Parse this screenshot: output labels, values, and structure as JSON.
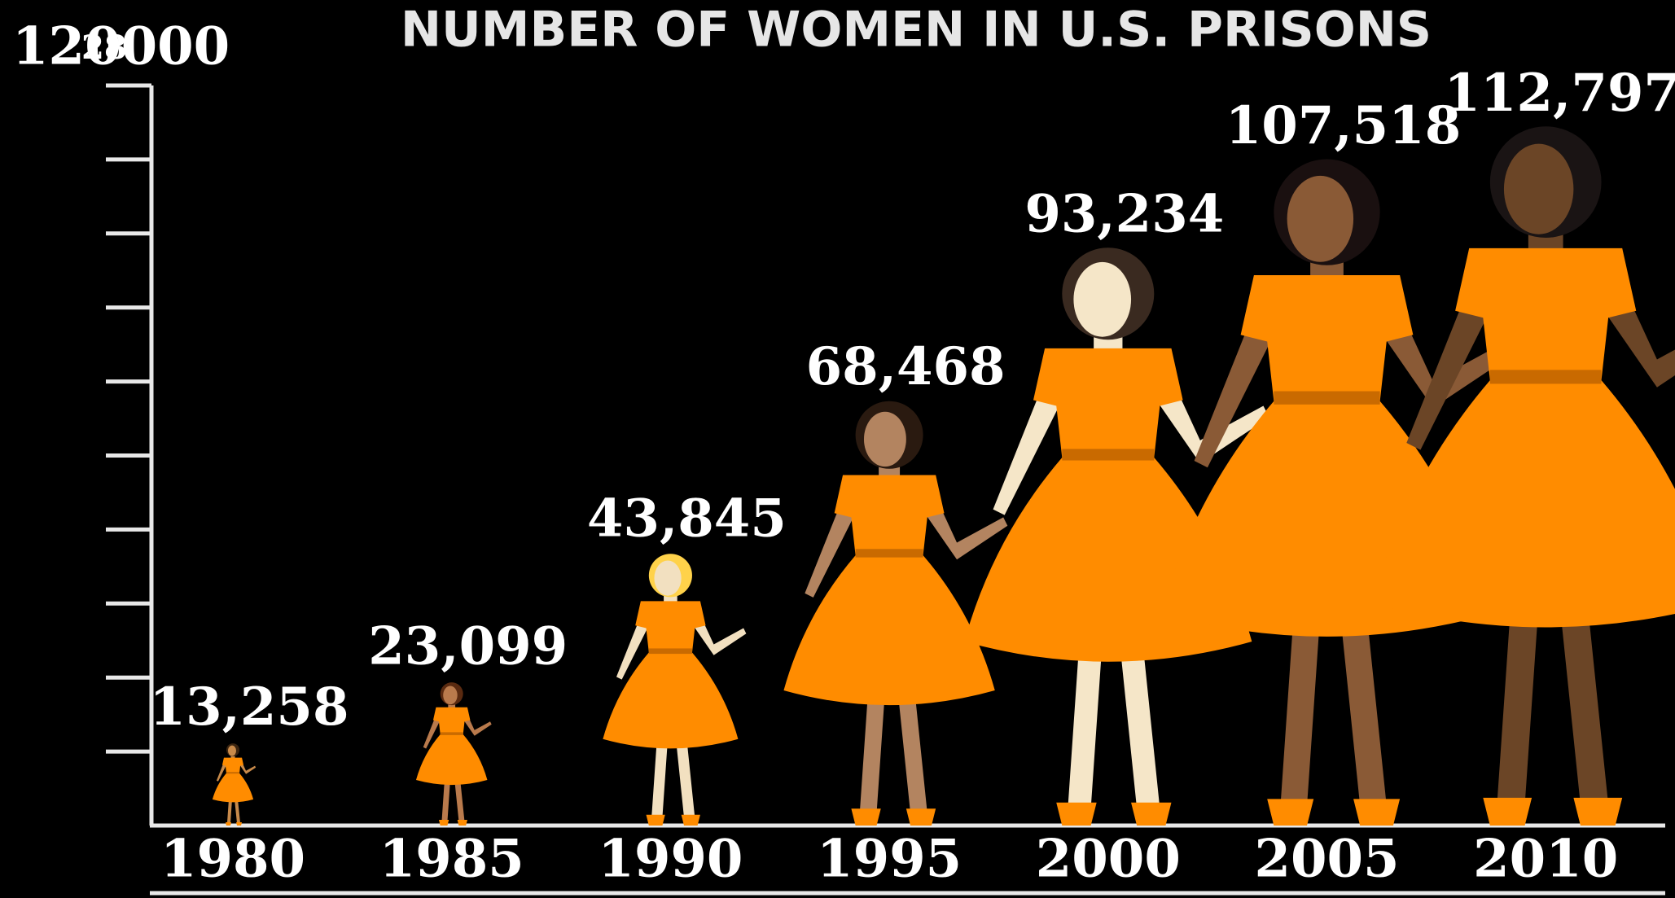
{
  "chart_data": {
    "type": "pictograph",
    "title": "NUMBER OF WOMEN IN U.S. PRISONS",
    "annotation": "28",
    "categories": [
      "1980",
      "1985",
      "1990",
      "1995",
      "2000",
      "2005",
      "2010"
    ],
    "values": [
      13258,
      23099,
      43845,
      68468,
      93234,
      107518,
      112797
    ],
    "value_labels": [
      "13,258",
      "23,099",
      "43,845",
      "68,468",
      "93,234",
      "107,518",
      "112,797"
    ],
    "color": "#ff8c00",
    "ylim": [
      0,
      120000
    ],
    "yticks": [
      120000
    ],
    "yminor_ticks": [
      12000,
      24000,
      36000,
      48000,
      60000,
      72000,
      84000,
      96000,
      108000
    ]
  }
}
